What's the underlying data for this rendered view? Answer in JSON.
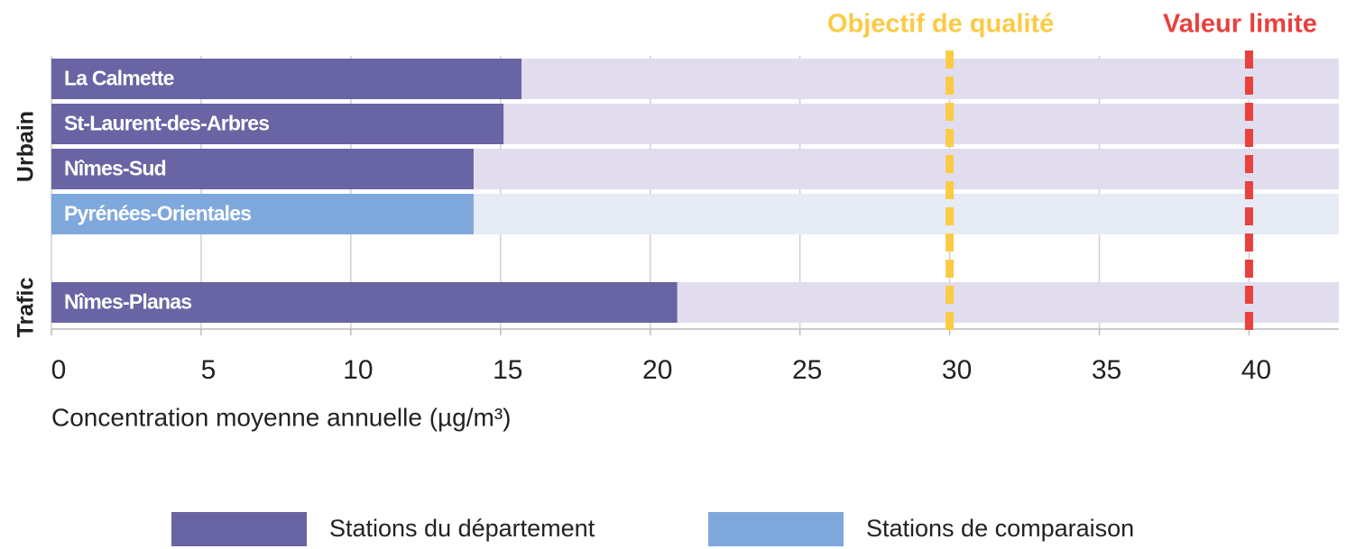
{
  "chart_data": {
    "type": "bar",
    "orientation": "horizontal",
    "x_label": "Concentration moyenne annuelle (µg/m³)",
    "xlim": [
      0,
      43
    ],
    "xticks": [
      0,
      5,
      10,
      15,
      20,
      25,
      30,
      35,
      40
    ],
    "grid": true,
    "groups": [
      {
        "name": "Urbain",
        "bars": [
          {
            "label": "La Calmette",
            "value": 15.7,
            "kind": 0
          },
          {
            "label": "St-Laurent-des-Arbres",
            "value": 15.1,
            "kind": 0
          },
          {
            "label": "Nîmes-Sud",
            "value": 14.1,
            "kind": 0
          },
          {
            "label": "Pyrénées-Orientales",
            "value": 14.1,
            "kind": 1
          }
        ]
      },
      {
        "name": "Trafic",
        "bars": [
          {
            "label": "Nîmes-Planas",
            "value": 20.9,
            "kind": 0
          }
        ]
      }
    ],
    "legend": [
      {
        "name": "Stations du département",
        "color": "#6964a3",
        "track_color": "#e1ddee"
      },
      {
        "name": "Stations de comparaison",
        "color": "#7fa8dc",
        "track_color": "#e6ebf6"
      }
    ],
    "reference_lines": [
      {
        "label": "Objectif de qualité",
        "value": 30,
        "color": "#fbcb45"
      },
      {
        "label": "Valeur limite",
        "value": 40,
        "color": "#e8413e"
      }
    ]
  }
}
